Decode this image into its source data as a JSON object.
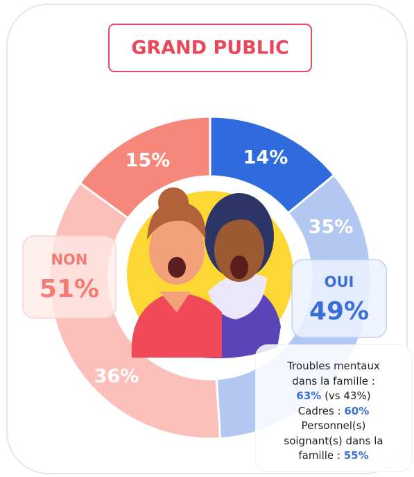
{
  "chart_data": {
    "type": "donut",
    "title": "GRAND PUBLIC",
    "categories": [
      null,
      null,
      null,
      null
    ],
    "values": [
      14,
      35,
      36,
      15
    ],
    "value_labels": [
      "14%",
      "35%",
      "36%",
      "15%"
    ],
    "colors": [
      "#2f6bdc",
      "#b2c7f1",
      "#fbc0ba",
      "#f7877b"
    ],
    "groups": [
      {
        "name": "NON",
        "value": 51,
        "value_label": "51%",
        "color": "#f2615a"
      },
      {
        "name": "OUI",
        "value": 49,
        "value_label": "49%",
        "color": "#3a6fd8"
      }
    ],
    "note": [
      [
        "Troubles mentaux"
      ],
      [
        "dans la famille :"
      ],
      [
        "63%",
        " (vs 43%)"
      ],
      [
        "Cadres : ",
        "60%"
      ],
      [
        "Personnel(s)"
      ],
      [
        "soignant(s) dans la"
      ],
      [
        "famille : ",
        "55%"
      ]
    ]
  }
}
